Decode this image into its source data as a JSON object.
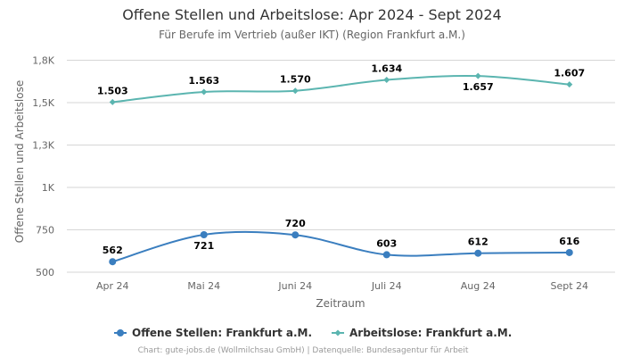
{
  "chart_data": {
    "type": "line",
    "title": "Offene Stellen und Arbeitslose: Apr 2024 - Sept 2024",
    "subtitle": "Für Berufe im Vertrieb (außer IKT) (Region Frankfurt a.M.)",
    "xlabel": "Zeitraum",
    "ylabel": "Offene Stellen und Arbeitslose",
    "categories": [
      "Apr 24",
      "Mai 24",
      "Juni 24",
      "Juli 24",
      "Aug 24",
      "Sept 24"
    ],
    "ylim": [
      500,
      1800
    ],
    "yticks": [
      {
        "value": 500,
        "label": "500"
      },
      {
        "value": 750,
        "label": "750"
      },
      {
        "value": 1000,
        "label": "1K"
      },
      {
        "value": 1250,
        "label": "1,3K"
      },
      {
        "value": 1500,
        "label": "1,5K"
      },
      {
        "value": 1750,
        "label": "1,8K"
      }
    ],
    "grid": true,
    "legend_position": "bottom",
    "series": [
      {
        "name": "Offene Stellen: Frankfurt a.M.",
        "color": "#3a7ebf",
        "marker": "circle",
        "values": [
          562,
          721,
          720,
          603,
          612,
          616
        ],
        "labels": [
          "562",
          "721",
          "720",
          "603",
          "612",
          "616"
        ]
      },
      {
        "name": "Arbeitslose: Frankfurt a.M.",
        "color": "#5bb5b0",
        "marker": "diamond",
        "values": [
          1503,
          1563,
          1570,
          1634,
          1657,
          1607
        ],
        "labels": [
          "1.503",
          "1.563",
          "1.570",
          "1.634",
          "1.657",
          "1.607"
        ]
      }
    ]
  },
  "credits": "Chart: gute-jobs.de (Wollmilchsau GmbH) | Datenquelle: Bundesagentur für Arbeit"
}
